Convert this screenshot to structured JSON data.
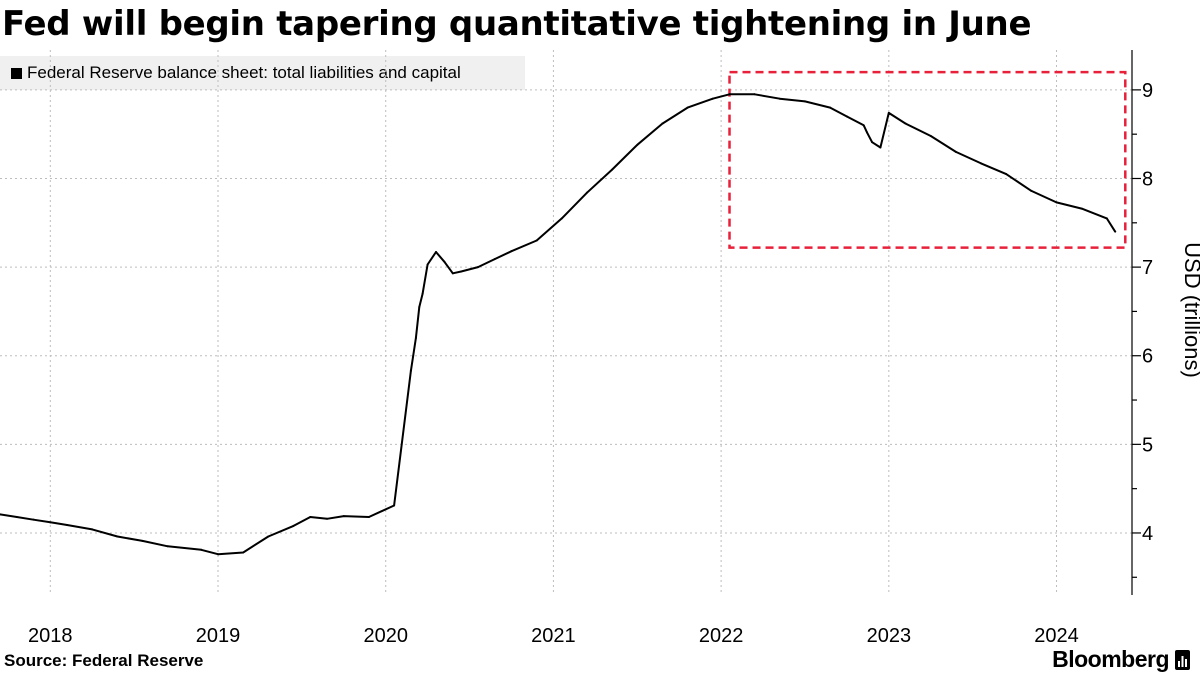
{
  "title": "Fed will begin tapering quantitative tightening in June",
  "legend": {
    "label": "Federal Reserve balance sheet: total liabilities and capital",
    "swatch_color": "#000000"
  },
  "source": "Source: Federal Reserve",
  "brand": "Bloomberg",
  "brand_icon": "bloomberg-terminal-icon",
  "chart_data": {
    "type": "line",
    "title": "Fed will begin tapering quantitative tightening in June",
    "xlabel": "",
    "ylabel": "USD (trillions)",
    "xlim": [
      2017.7,
      2024.45
    ],
    "ylim": [
      3.3,
      9.45
    ],
    "yticks": [
      4,
      5,
      6,
      7,
      8,
      9
    ],
    "xticks": [
      {
        "value": 2018.0,
        "label": "2018"
      },
      {
        "value": 2019.0,
        "label": "2019"
      },
      {
        "value": 2020.0,
        "label": "2020"
      },
      {
        "value": 2021.0,
        "label": "2021"
      },
      {
        "value": 2022.0,
        "label": "2022"
      },
      {
        "value": 2023.0,
        "label": "2023"
      },
      {
        "value": 2024.0,
        "label": "2024"
      }
    ],
    "grid": true,
    "line_color": "#000000",
    "series": [
      {
        "name": "Federal Reserve balance sheet: total liabilities and capital",
        "x": [
          2017.7,
          2017.8,
          2017.9,
          2018.0,
          2018.1,
          2018.25,
          2018.4,
          2018.55,
          2018.7,
          2018.9,
          2019.0,
          2019.15,
          2019.3,
          2019.45,
          2019.55,
          2019.65,
          2019.75,
          2019.9,
          2020.05,
          2020.15,
          2020.18,
          2020.2,
          2020.22,
          2020.25,
          2020.3,
          2020.35,
          2020.4,
          2020.45,
          2020.55,
          2020.65,
          2020.75,
          2020.9,
          2021.05,
          2021.2,
          2021.35,
          2021.5,
          2021.65,
          2021.8,
          2021.95,
          2022.05,
          2022.2,
          2022.35,
          2022.5,
          2022.65,
          2022.75,
          2022.85,
          2022.87,
          2022.9,
          2022.95,
          2023.0,
          2023.1,
          2023.25,
          2023.4,
          2023.55,
          2023.7,
          2023.85,
          2024.0,
          2024.15,
          2024.3,
          2024.35
        ],
        "values": [
          4.21,
          4.18,
          4.15,
          4.12,
          4.09,
          4.04,
          3.96,
          3.91,
          3.85,
          3.81,
          3.76,
          3.78,
          3.96,
          4.08,
          4.18,
          4.16,
          4.19,
          4.18,
          4.31,
          5.83,
          6.2,
          6.55,
          6.7,
          7.03,
          7.17,
          7.06,
          6.93,
          6.95,
          7.0,
          7.09,
          7.18,
          7.3,
          7.55,
          7.84,
          8.1,
          8.38,
          8.62,
          8.8,
          8.9,
          8.95,
          8.95,
          8.9,
          8.87,
          8.8,
          8.7,
          8.6,
          8.52,
          8.41,
          8.35,
          8.74,
          8.62,
          8.48,
          8.3,
          8.17,
          8.05,
          7.86,
          7.73,
          7.66,
          7.55,
          7.4
        ]
      }
    ],
    "annotations": [
      {
        "type": "dashed-rectangle",
        "color": "#e8203a",
        "x_range": [
          2022.05,
          2024.41
        ],
        "y_range": [
          7.22,
          9.2
        ],
        "label": ""
      }
    ]
  }
}
